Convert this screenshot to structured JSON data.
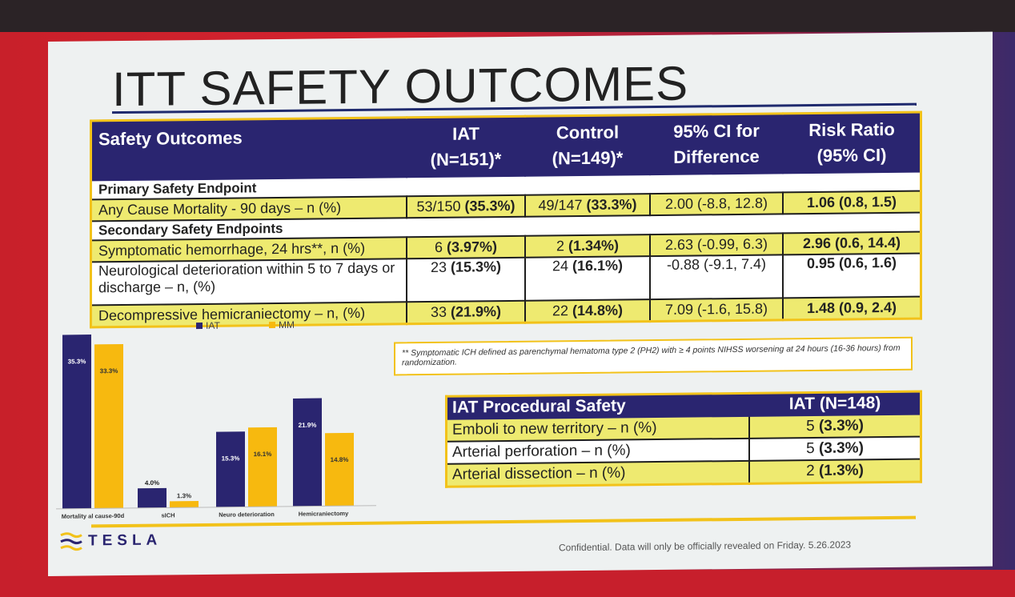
{
  "title": "ITT SAFETY OUTCOMES",
  "colors": {
    "iat": "#2a2570",
    "mm": "#f7b90f",
    "accent": "#f2c21a",
    "highlight": "#eeea70"
  },
  "table": {
    "headers": [
      {
        "line1": "Safety Outcomes",
        "line2": ""
      },
      {
        "line1": "IAT",
        "line2": "(N=151)*"
      },
      {
        "line1": "Control",
        "line2": "(N=149)*"
      },
      {
        "line1": "95% CI for",
        "line2": "Difference"
      },
      {
        "line1": "Risk Ratio",
        "line2": "(95% CI)"
      }
    ],
    "primary_header": "Primary Safety Endpoint",
    "primary_row": {
      "label": "Any Cause Mortality - 90 days – n (%)",
      "iat_n": "53/150",
      "iat_pct": "(35.3%)",
      "ctrl_n": "49/147",
      "ctrl_pct": "(33.3%)",
      "ci": "2.00 (-8.8, 12.8)",
      "rr": "1.06 (0.8, 1.5)"
    },
    "secondary_header": "Secondary Safety Endpoints",
    "secondary_rows": [
      {
        "label": "Symptomatic hemorrhage, 24 hrs**, n (%)",
        "iat_n": "6",
        "iat_pct": "(3.97%)",
        "ctrl_n": "2",
        "ctrl_pct": "(1.34%)",
        "ci": "2.63 (-0.99, 6.3)",
        "rr": "2.96 (0.6, 14.4)"
      },
      {
        "label": "Neurological deterioration within 5 to 7 days or discharge – n, (%)",
        "iat_n": "23",
        "iat_pct": "(15.3%)",
        "ctrl_n": "24",
        "ctrl_pct": "(16.1%)",
        "ci": "-0.88 (-9.1, 7.4)",
        "rr": "0.95 (0.6, 1.6)"
      },
      {
        "label": "Decompressive hemicraniectomy – n, (%)",
        "iat_n": "33",
        "iat_pct": "(21.9%)",
        "ctrl_n": "22",
        "ctrl_pct": "(14.8%)",
        "ci": "7.09 (-1.6, 15.8)",
        "rr": "1.48 (0.9, 2.4)"
      }
    ]
  },
  "chart_data": {
    "type": "bar",
    "categories": [
      "Mortality al cause-90d",
      "sICH",
      "Neuro deterioration",
      "Hemicraniectomy"
    ],
    "series": [
      {
        "name": "IAT",
        "values": [
          35.3,
          4.0,
          15.3,
          21.9
        ],
        "labels": [
          "35.3%",
          "4.0%",
          "15.3%",
          "21.9%"
        ]
      },
      {
        "name": "MM",
        "values": [
          33.3,
          1.3,
          16.1,
          14.8
        ],
        "labels": [
          "33.3%",
          "1.3%",
          "16.1%",
          "14.8%"
        ]
      }
    ],
    "ylim": [
      0,
      38
    ]
  },
  "footnote": "** Symptomatic ICH defined as parenchymal hematoma type 2 (PH2) with ≥ 4 points NIHSS worsening at 24 hours (16-36 hours) from randomization.",
  "procedural": {
    "header_label": "IAT Procedural Safety",
    "header_value": "IAT (N=148)",
    "rows": [
      {
        "label": "Emboli to new territory – n (%)",
        "n": "5",
        "pct": "(3.3%)"
      },
      {
        "label": "Arterial perforation – n (%)",
        "n": "5",
        "pct": "(3.3%)"
      },
      {
        "label": "Arterial dissection – n (%)",
        "n": "2",
        "pct": "(1.3%)"
      }
    ]
  },
  "logo_text": "TESLA",
  "footer": "Confidential. Data will only be officially revealed on Friday. 5.26.2023"
}
